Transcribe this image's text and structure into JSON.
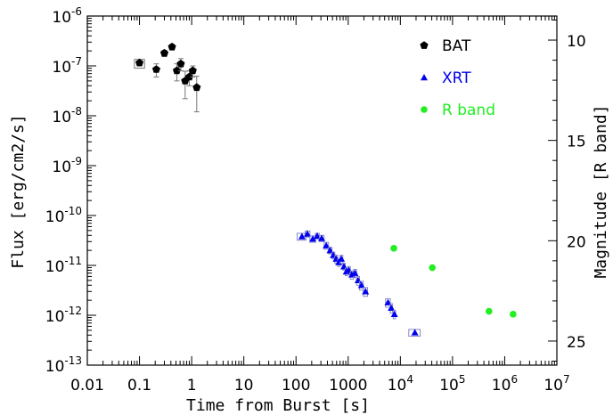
{
  "chart_data": {
    "type": "scatter",
    "title": "",
    "xlabel": "Time from Burst [s]",
    "ylabel": "Flux [erg/cm2/s]",
    "ylabel_right": "Magnitude [R band]",
    "x_scale": "log",
    "y_scale": "log",
    "xlim": [
      0.01,
      10000000
    ],
    "ylim": [
      1e-13,
      1e-06
    ],
    "y_right_lim": [
      26.2,
      8.8
    ],
    "grid": false,
    "legend_position": "top-right",
    "x_ticks": [
      {
        "value": 0.01,
        "label": "0.01"
      },
      {
        "value": 0.1,
        "label": "0.1"
      },
      {
        "value": 1,
        "label": "1"
      },
      {
        "value": 10,
        "label": "10"
      },
      {
        "value": 100,
        "label": "100"
      },
      {
        "value": 1000,
        "label": "1000"
      },
      {
        "value": 10000,
        "base": "10",
        "exp": "4"
      },
      {
        "value": 100000,
        "base": "10",
        "exp": "5"
      },
      {
        "value": 1000000,
        "base": "10",
        "exp": "6"
      },
      {
        "value": 10000000,
        "base": "10",
        "exp": "7"
      }
    ],
    "y_ticks": [
      {
        "value": 1e-06,
        "base": "10",
        "exp": "-6"
      },
      {
        "value": 1e-07,
        "base": "10",
        "exp": "-7"
      },
      {
        "value": 1e-08,
        "base": "10",
        "exp": "-8"
      },
      {
        "value": 1e-09,
        "base": "10",
        "exp": "-9"
      },
      {
        "value": 1e-10,
        "base": "10",
        "exp": "-10"
      },
      {
        "value": 1e-11,
        "base": "10",
        "exp": "-11"
      },
      {
        "value": 1e-12,
        "base": "10",
        "exp": "-12"
      },
      {
        "value": 1e-13,
        "base": "10",
        "exp": "-13"
      }
    ],
    "y_right_ticks": [
      {
        "value": 10,
        "label": "10"
      },
      {
        "value": 15,
        "label": "15"
      },
      {
        "value": 20,
        "label": "20"
      },
      {
        "value": 25,
        "label": "25"
      }
    ],
    "series": [
      {
        "name": "BAT",
        "color": "#000000",
        "marker": "pentagon",
        "points": [
          {
            "x": 0.1,
            "y": 1.15e-07,
            "xerr": [
              0.08,
              0.125
            ],
            "yerr": [
              9e-08,
              1.35e-07
            ]
          },
          {
            "x": 0.21,
            "y": 8.5e-08,
            "yerr": [
              6e-08,
              1.1e-07
            ]
          },
          {
            "x": 0.3,
            "y": 1.8e-07,
            "yerr": [
              1.55e-07,
              2.05e-07
            ]
          },
          {
            "x": 0.42,
            "y": 2.4e-07,
            "yerr": [
              2.1e-07,
              2.7e-07
            ]
          },
          {
            "x": 0.52,
            "y": 8e-08,
            "yerr": [
              5e-08,
              1.1e-07
            ]
          },
          {
            "x": 0.62,
            "y": 1.1e-07,
            "yerr": [
              8e-08,
              1.4e-07
            ]
          },
          {
            "x": 0.75,
            "y": 5e-08,
            "yerr": [
              2.2e-08,
              7.8e-08
            ]
          },
          {
            "x": 0.9,
            "y": 6e-08,
            "yerr": [
              4e-08,
              8e-08
            ]
          },
          {
            "x": 1.05,
            "y": 8e-08,
            "yerr": [
              6e-08,
              1e-07
            ]
          },
          {
            "x": 1.25,
            "y": 3.7e-08,
            "yerr": [
              1.2e-08,
              6.2e-08
            ]
          }
        ]
      },
      {
        "name": "XRT",
        "color": "#0000ee",
        "marker": "triangle",
        "points": [
          {
            "x": 130,
            "y": 3.8e-11,
            "xerr": [
              105,
              155
            ],
            "yerr": [
              3.2e-11,
              4.4e-11
            ]
          },
          {
            "x": 165,
            "y": 4.3e-11,
            "xerr": [
              150,
              185
            ],
            "yerr": [
              3.7e-11,
              4.9e-11
            ]
          },
          {
            "x": 210,
            "y": 3.4e-11,
            "xerr": [
              185,
              235
            ],
            "yerr": [
              2.9e-11,
              3.9e-11
            ]
          },
          {
            "x": 255,
            "y": 3.9e-11,
            "xerr": [
              235,
              280
            ],
            "yerr": [
              3.4e-11,
              4.4e-11
            ]
          },
          {
            "x": 310,
            "y": 3.5e-11,
            "xerr": [
              280,
              345
            ],
            "yerr": [
              3e-11,
              4e-11
            ]
          },
          {
            "x": 380,
            "y": 2.5e-11,
            "xerr": [
              345,
              420
            ],
            "yerr": [
              2.1e-11,
              2.9e-11
            ]
          },
          {
            "x": 450,
            "y": 2e-11,
            "xerr": [
              420,
              490
            ],
            "yerr": [
              1.7e-11,
              2.3e-11
            ]
          },
          {
            "x": 520,
            "y": 1.6e-11,
            "xerr": [
              490,
              555
            ],
            "yerr": [
              1.35e-11,
              1.85e-11
            ]
          },
          {
            "x": 590,
            "y": 1.35e-11,
            "xerr": [
              555,
              630
            ],
            "yerr": [
              1.1e-11,
              1.6e-11
            ]
          },
          {
            "x": 660,
            "y": 1.15e-11,
            "xerr": [
              630,
              700
            ],
            "yerr": [
              9.5e-12,
              1.35e-11
            ]
          },
          {
            "x": 740,
            "y": 1.35e-11,
            "xerr": [
              700,
              790
            ],
            "yerr": [
              1.1e-11,
              1.6e-11
            ]
          },
          {
            "x": 830,
            "y": 9.5e-12,
            "xerr": [
              790,
              880
            ],
            "yerr": [
              8e-12,
              1.1e-11
            ]
          },
          {
            "x": 920,
            "y": 7.5e-12,
            "xerr": [
              880,
              970
            ],
            "yerr": [
              6.2e-12,
              8.8e-12
            ]
          },
          {
            "x": 1030,
            "y": 8e-12,
            "xerr": [
              970,
              1100
            ],
            "yerr": [
              6.5e-12,
              9.5e-12
            ]
          },
          {
            "x": 1180,
            "y": 6.5e-12,
            "xerr": [
              1100,
              1260
            ],
            "yerr": [
              5.3e-12,
              7.7e-12
            ]
          },
          {
            "x": 1350,
            "y": 7e-12,
            "xerr": [
              1260,
              1450
            ],
            "yerr": [
              5.7e-12,
              8.3e-12
            ]
          },
          {
            "x": 1550,
            "y": 5e-12,
            "xerr": [
              1450,
              1650
            ],
            "yerr": [
              4e-12,
              6e-12
            ]
          },
          {
            "x": 1800,
            "y": 4e-12,
            "xerr": [
              1650,
              1950
            ],
            "yerr": [
              3.2e-12,
              4.8e-12
            ]
          },
          {
            "x": 2150,
            "y": 3e-12,
            "xerr": [
              1950,
              2350
            ],
            "yerr": [
              2.4e-12,
              3.6e-12
            ]
          },
          {
            "x": 5800,
            "y": 1.8e-12,
            "xerr": [
              5200,
              6400
            ],
            "yerr": [
              1.45e-12,
              2.15e-12
            ]
          },
          {
            "x": 6700,
            "y": 1.4e-12,
            "xerr": [
              6400,
              7100
            ],
            "yerr": [
              1.1e-12,
              1.7e-12
            ]
          },
          {
            "x": 7700,
            "y": 1.05e-12,
            "xerr": [
              7300,
              8100
            ],
            "yerr": [
              8.5e-13,
              1.25e-12
            ]
          },
          {
            "x": 19000,
            "y": 4.5e-13,
            "xerr": [
              14500,
              24000
            ],
            "yerr": [
              3.8e-13,
              5.2e-13
            ]
          }
        ]
      },
      {
        "name": "R band",
        "color": "#22ee22",
        "marker": "circle",
        "points": [
          {
            "x": 7500,
            "y": 2.2e-11,
            "xerr": [
              6800,
              8200
            ]
          },
          {
            "x": 41000,
            "y": 9e-12,
            "xerr": [
              36000,
              46000
            ]
          },
          {
            "x": 500000,
            "y": 1.2e-12,
            "xerr": [
              450000,
              550000
            ]
          },
          {
            "x": 1450000,
            "y": 1.05e-12,
            "xerr": [
              1300000,
              1600000
            ]
          }
        ]
      }
    ]
  }
}
